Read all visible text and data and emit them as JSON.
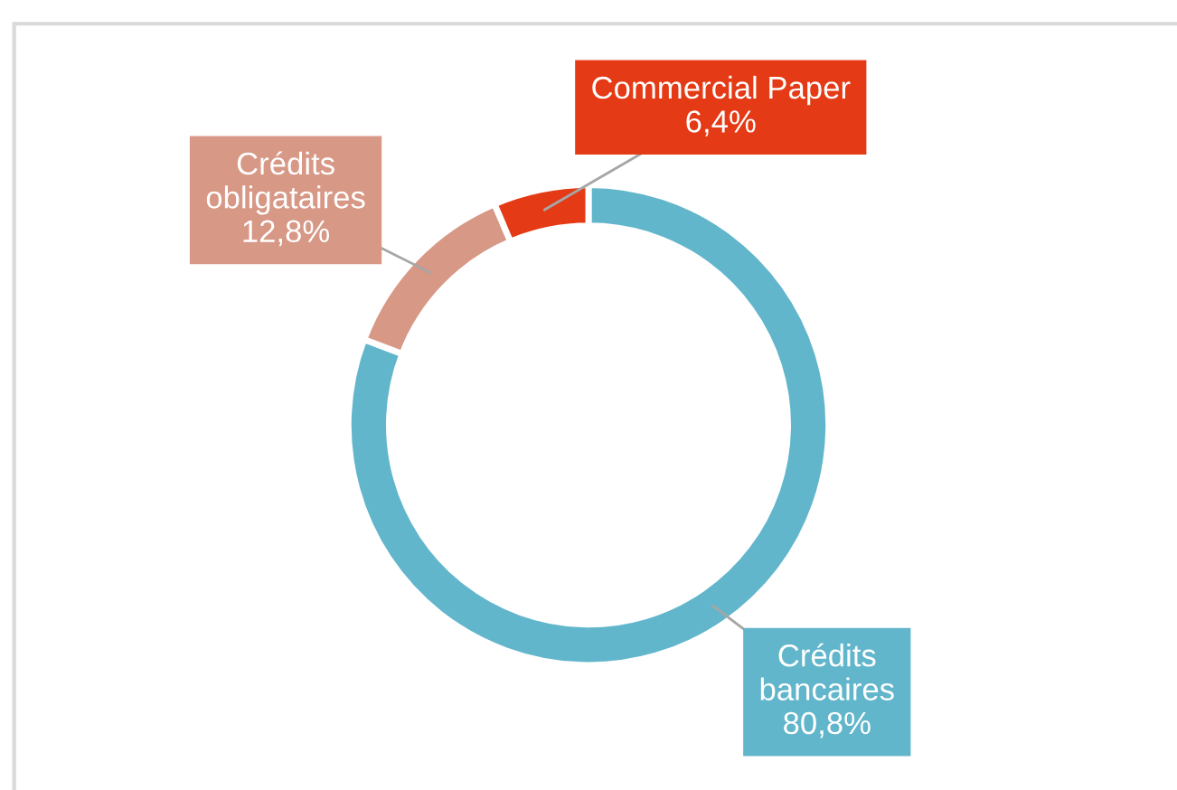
{
  "chart_data": {
    "type": "donut",
    "categories": [
      "Crédits bancaires",
      "Crédits obligataires",
      "Commercial Paper"
    ],
    "values": [
      80.8,
      12.8,
      6.4
    ],
    "value_labels": [
      "80,8%",
      "12,8%",
      "6,4%"
    ],
    "colors": [
      "#62b6cb",
      "#d79886",
      "#e43a15"
    ],
    "legend": false
  }
}
